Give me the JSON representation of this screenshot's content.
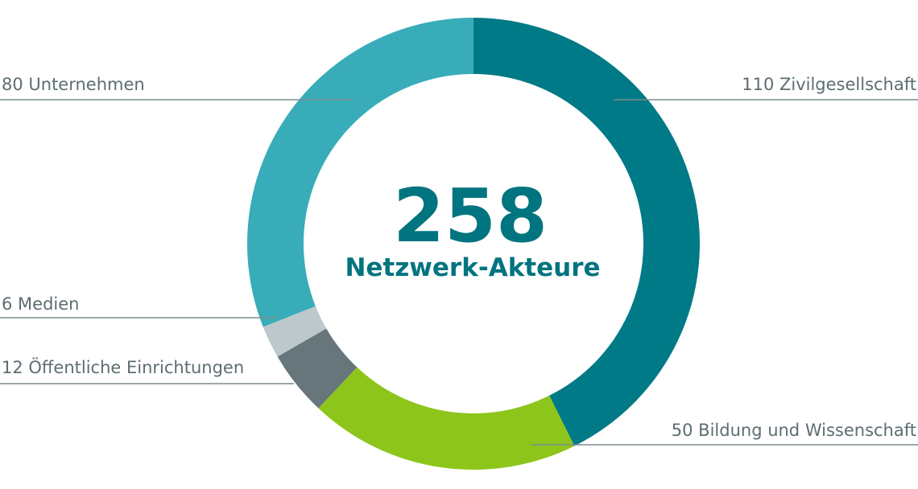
{
  "chart_data": {
    "type": "donut",
    "values": [
      110,
      50,
      12,
      6,
      80
    ],
    "value_labels": [
      "110 Zivilgesellschaft",
      "50 Bildung und Wissenschaft",
      "12 Öffentliche Einrichtungen",
      "6 Medien",
      "80 Unternehmen"
    ],
    "colors": [
      "#007a86",
      "#8dc51b",
      "#66767b",
      "#bcc8cc",
      "#38adb9"
    ],
    "center_value": 258,
    "center_label": "Netzwerk-Akteure"
  }
}
